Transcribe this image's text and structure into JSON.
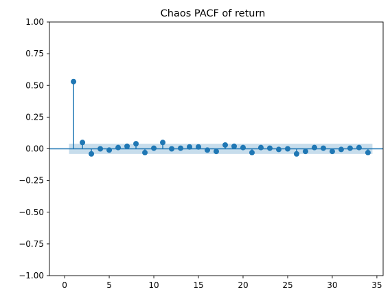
{
  "chart_data": {
    "type": "scatter",
    "subtype": "pacf-stem",
    "title": "Chaos PACF of return",
    "xlabel": "",
    "ylabel": "",
    "xlim": [
      -1.7,
      35.7
    ],
    "ylim": [
      -1.0,
      1.0
    ],
    "xticks": [
      0,
      5,
      10,
      15,
      20,
      25,
      30,
      35
    ],
    "xtick_labels": [
      "0",
      "5",
      "10",
      "15",
      "20",
      "25",
      "30",
      "35"
    ],
    "yticks": [
      1.0,
      0.75,
      0.5,
      0.25,
      0.0,
      -0.25,
      -0.5,
      -0.75,
      -1.0
    ],
    "ytick_labels": [
      "1.00",
      "0.75",
      "0.50",
      "0.25",
      "0.00",
      "−0.25",
      "−0.50",
      "−0.75",
      "−1.00"
    ],
    "grid": false,
    "legend": "none",
    "confidence_band": {
      "x_start": 0.5,
      "x_end": 34.5,
      "lower": -0.04,
      "upper": 0.04
    },
    "lags": [
      1,
      2,
      3,
      4,
      5,
      6,
      7,
      8,
      9,
      10,
      11,
      12,
      13,
      14,
      15,
      16,
      17,
      18,
      19,
      20,
      21,
      22,
      23,
      24,
      25,
      26,
      27,
      28,
      29,
      30,
      31,
      32,
      33,
      34
    ],
    "values": [
      0.53,
      0.05,
      -0.04,
      0.0,
      -0.01,
      0.01,
      0.02,
      0.04,
      -0.03,
      0.005,
      0.05,
      0.0,
      0.005,
      0.015,
      0.015,
      -0.01,
      -0.02,
      0.03,
      0.02,
      0.01,
      -0.03,
      0.01,
      0.005,
      -0.005,
      0.0,
      -0.04,
      -0.02,
      0.01,
      0.005,
      -0.02,
      -0.005,
      0.005,
      0.01,
      -0.03
    ],
    "colors": {
      "stem": "#1f77b4",
      "band": "#1f77b4",
      "axis": "#000000"
    }
  }
}
